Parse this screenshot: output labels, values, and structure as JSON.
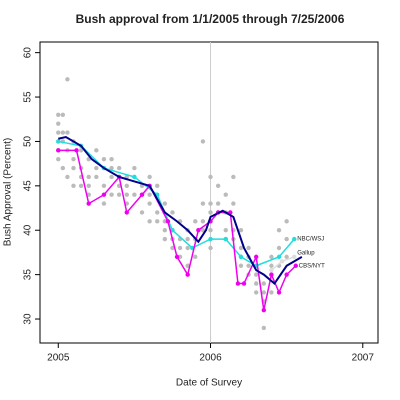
{
  "chart_data": {
    "type": "line",
    "title": "Bush approval from 1/1/2005 through 7/25/2006",
    "x_label": "Date of Survey",
    "y_label": "Bush Approval (Percent)",
    "xlim": [
      2004.88,
      2007.1
    ],
    "ylim": [
      27.3,
      61.2
    ],
    "xticks": [
      2005,
      2006,
      2007
    ],
    "yticks": [
      30,
      35,
      40,
      45,
      50,
      55,
      60
    ],
    "vline": 2006,
    "vline_color": "#cccccc",
    "polls": {
      "color": "#bbbbbb",
      "x": [
        2005.0,
        2005.0,
        2005.0,
        2005.0,
        2005.0,
        2005.0,
        2005.03,
        2005.03,
        2005.03,
        2005.03,
        2005.06,
        2005.06,
        2005.06,
        2005.06,
        2005.1,
        2005.1,
        2005.1,
        2005.1,
        2005.15,
        2005.15,
        2005.15,
        2005.15,
        2005.2,
        2005.2,
        2005.2,
        2005.2,
        2005.25,
        2005.25,
        2005.25,
        2005.3,
        2005.3,
        2005.3,
        2005.3,
        2005.35,
        2005.35,
        2005.35,
        2005.35,
        2005.4,
        2005.4,
        2005.4,
        2005.4,
        2005.45,
        2005.45,
        2005.45,
        2005.45,
        2005.5,
        2005.5,
        2005.5,
        2005.55,
        2005.55,
        2005.55,
        2005.6,
        2005.6,
        2005.6,
        2005.6,
        2005.65,
        2005.65,
        2005.65,
        2005.7,
        2005.7,
        2005.7,
        2005.7,
        2005.75,
        2005.75,
        2005.75,
        2005.75,
        2005.8,
        2005.8,
        2005.8,
        2005.8,
        2005.85,
        2005.85,
        2005.85,
        2005.85,
        2005.9,
        2005.9,
        2005.9,
        2005.95,
        2005.95,
        2005.95,
        2005.95,
        2006.0,
        2006.0,
        2006.0,
        2006.0,
        2006.0,
        2006.05,
        2006.05,
        2006.05,
        2006.1,
        2006.1,
        2006.1,
        2006.1,
        2006.15,
        2006.15,
        2006.15,
        2006.15,
        2006.2,
        2006.2,
        2006.2,
        2006.2,
        2006.25,
        2006.25,
        2006.25,
        2006.25,
        2006.3,
        2006.3,
        2006.3,
        2006.3,
        2006.35,
        2006.35,
        2006.35,
        2006.35,
        2006.4,
        2006.4,
        2006.4,
        2006.4,
        2006.45,
        2006.45,
        2006.45,
        2006.5,
        2006.5,
        2006.5
      ],
      "y": [
        52,
        51,
        50,
        49,
        48,
        53,
        53,
        51,
        50,
        47,
        57,
        51,
        49,
        46,
        50,
        48,
        47,
        45,
        49,
        47,
        46,
        45,
        48,
        46,
        45,
        44,
        49,
        47,
        46,
        48,
        47,
        45,
        43,
        48,
        47,
        46,
        44,
        47,
        46,
        45,
        44,
        46,
        45,
        44,
        43,
        47,
        46,
        44,
        45,
        44,
        42,
        46,
        44,
        43,
        41,
        45,
        42,
        41,
        43,
        41,
        40,
        39,
        42,
        40,
        39,
        38,
        41,
        39,
        38,
        37,
        40,
        39,
        38,
        36,
        41,
        39,
        37,
        50,
        43,
        41,
        40,
        46,
        43,
        42,
        40,
        38,
        45,
        43,
        42,
        44,
        42,
        40,
        39,
        46,
        43,
        40,
        39,
        40,
        38,
        37,
        36,
        38,
        37,
        36,
        35,
        36,
        35,
        34,
        33,
        34,
        33,
        32,
        29,
        37,
        36,
        35,
        33,
        40,
        38,
        36,
        41,
        39,
        37
      ]
    },
    "trend": {
      "color": "#00008b",
      "x": [
        2005.0,
        2005.05,
        2005.15,
        2005.22,
        2005.3,
        2005.4,
        2005.5,
        2005.6,
        2005.7,
        2005.78,
        2005.85,
        2005.92,
        2005.97,
        2006.0,
        2006.08,
        2006.15,
        2006.22,
        2006.3,
        2006.35,
        2006.42,
        2006.5,
        2006.6
      ],
      "values": [
        50.3,
        50.5,
        49.5,
        48,
        47,
        46,
        45.5,
        45,
        42,
        41,
        40,
        38.7,
        40,
        41.5,
        42.2,
        41.5,
        38,
        35.5,
        35,
        34,
        36,
        37
      ]
    },
    "series": [
      {
        "name": "NBC/WSJ",
        "color": "#22dddd",
        "x": [
          2005.0,
          2005.15,
          2005.3,
          2005.5,
          2005.65,
          2005.75,
          2005.88,
          2006.0,
          2006.1,
          2006.2,
          2006.3,
          2006.45,
          2006.55
        ],
        "values": [
          50,
          49.5,
          47,
          46,
          44,
          40,
          38,
          39,
          39,
          37,
          36,
          37,
          39
        ]
      },
      {
        "name": "CBS/NYT",
        "color": "#ee00ee",
        "x": [
          2005.0,
          2005.12,
          2005.2,
          2005.3,
          2005.4,
          2005.45,
          2005.55,
          2005.6,
          2005.72,
          2005.78,
          2005.85,
          2005.92,
          2006.0,
          2006.05,
          2006.13,
          2006.18,
          2006.22,
          2006.3,
          2006.35,
          2006.4,
          2006.45,
          2006.5,
          2006.56
        ],
        "values": [
          49,
          49,
          43,
          44,
          46,
          42,
          44,
          45,
          41,
          37,
          35,
          40,
          41,
          42,
          42,
          34,
          34,
          37,
          31,
          35,
          33,
          35,
          36
        ]
      },
      {
        "name": "Gallup",
        "color": "#dddddd",
        "x": [
          2006.4,
          2006.47,
          2006.55
        ],
        "values": [
          35.5,
          36.5,
          37
        ]
      }
    ]
  }
}
